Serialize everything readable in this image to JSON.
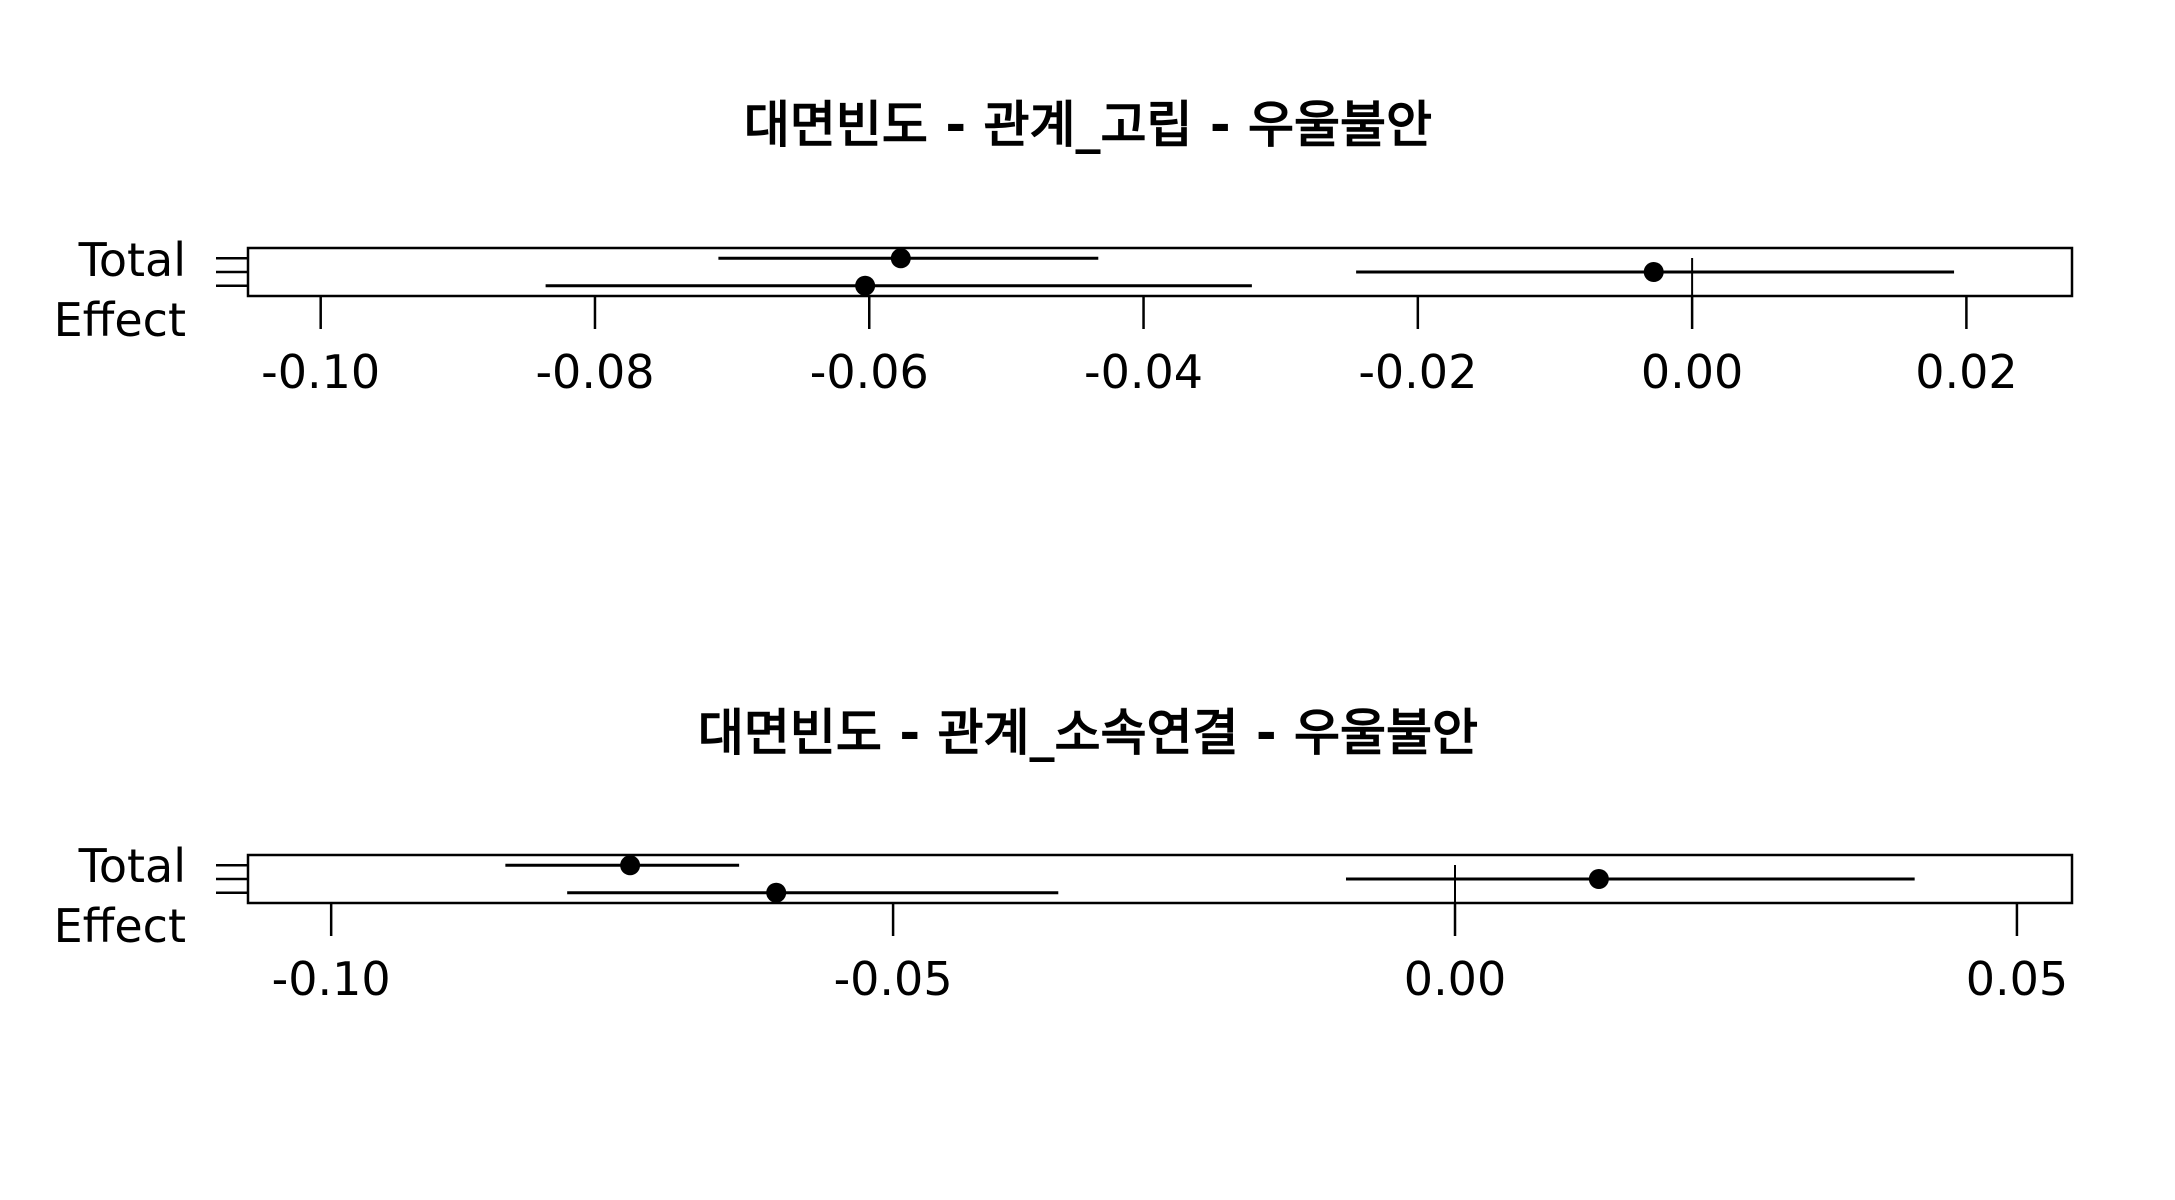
{
  "chart_data": [
    {
      "type": "forest",
      "title": "대면빈도 - 관계_고립 - 우울불안",
      "y_label_lines": [
        "Total",
        "Effect"
      ],
      "xlim": [
        -0.1053,
        0.0277
      ],
      "x_ticks": [
        -0.1,
        -0.08,
        -0.06,
        -0.04,
        -0.02,
        0.0,
        0.02
      ],
      "x_tick_labels": [
        "-0.10",
        "-0.08",
        "-0.06",
        "-0.04",
        "-0.02",
        "0.00",
        "0.02"
      ],
      "reference_line": 0,
      "rows": 3,
      "effects": [
        {
          "row": 1,
          "estimate": -0.0577,
          "lower": -0.071,
          "upper": -0.0433
        },
        {
          "row": 2,
          "estimate": -0.0028,
          "lower": -0.0245,
          "upper": 0.0191
        },
        {
          "row": 3,
          "estimate": -0.0603,
          "lower": -0.0836,
          "upper": -0.0321
        }
      ]
    },
    {
      "type": "forest",
      "title": "대면빈도 - 관계_소속연결 - 우울불안",
      "y_label_lines": [
        "Total",
        "Effect"
      ],
      "xlim": [
        -0.1074,
        0.0549
      ],
      "x_ticks": [
        -0.1,
        -0.05,
        0.0,
        0.05
      ],
      "x_tick_labels": [
        "-0.10",
        "-0.05",
        "0.00",
        "0.05"
      ],
      "reference_line": 0,
      "rows": 3,
      "effects": [
        {
          "row": 1,
          "estimate": -0.0734,
          "lower": -0.0845,
          "upper": -0.0637
        },
        {
          "row": 2,
          "estimate": 0.0128,
          "lower": -0.0097,
          "upper": 0.0409
        },
        {
          "row": 3,
          "estimate": -0.0604,
          "lower": -0.079,
          "upper": -0.0353
        }
      ]
    }
  ]
}
